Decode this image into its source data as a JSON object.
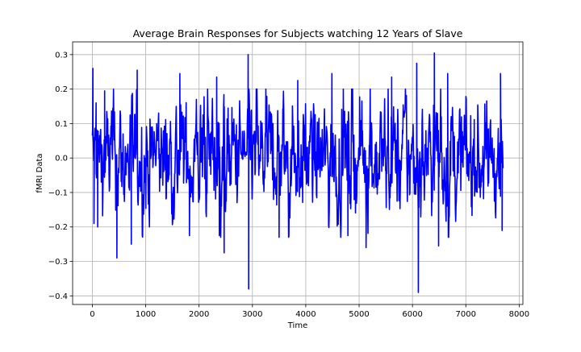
{
  "chart_data": {
    "type": "line",
    "title": "Average Brain Responses for Subjects watching 12 Years of Slave",
    "xlabel": "Time",
    "ylabel": "fMRI Data",
    "xlim": [
      -370,
      8070
    ],
    "ylim": [
      -0.425,
      0.337
    ],
    "xticks": [
      0,
      1000,
      2000,
      3000,
      4000,
      5000,
      6000,
      7000,
      8000
    ],
    "yticks": [
      -0.4,
      -0.3,
      -0.2,
      -0.1,
      0.0,
      0.1,
      0.2,
      0.3
    ],
    "xtick_labels": [
      "0",
      "1000",
      "2000",
      "3000",
      "4000",
      "5000",
      "6000",
      "7000",
      "8000"
    ],
    "ytick_labels": [
      "−0.4",
      "−0.3",
      "−0.2",
      "−0.1",
      "0.0",
      "0.1",
      "0.2",
      "0.3"
    ],
    "grid": true,
    "series": [
      {
        "color": "#0000ff",
        "n_points": 7700,
        "x_start": 0,
        "x_end": 7699,
        "range_min": -0.39,
        "range_max": 0.305,
        "typical_spread": 0.08,
        "peaks": [
          {
            "x": 10,
            "y": 0.26
          },
          {
            "x": 30,
            "y": -0.19
          },
          {
            "x": 70,
            "y": 0.16
          },
          {
            "x": 100,
            "y": -0.2
          },
          {
            "x": 230,
            "y": 0.195
          },
          {
            "x": 460,
            "y": -0.29
          },
          {
            "x": 730,
            "y": -0.25
          },
          {
            "x": 840,
            "y": 0.255
          },
          {
            "x": 1070,
            "y": -0.2
          },
          {
            "x": 1640,
            "y": 0.245
          },
          {
            "x": 1820,
            "y": -0.225
          },
          {
            "x": 2330,
            "y": 0.235
          },
          {
            "x": 2380,
            "y": -0.225
          },
          {
            "x": 2470,
            "y": -0.275
          },
          {
            "x": 2920,
            "y": 0.3
          },
          {
            "x": 2930,
            "y": -0.38
          },
          {
            "x": 2930,
            "y": -0.32
          },
          {
            "x": 3500,
            "y": -0.23
          },
          {
            "x": 3850,
            "y": 0.225
          },
          {
            "x": 4490,
            "y": 0.245
          },
          {
            "x": 4790,
            "y": -0.225
          },
          {
            "x": 5130,
            "y": -0.26
          },
          {
            "x": 5610,
            "y": 0.235
          },
          {
            "x": 6080,
            "y": 0.275
          },
          {
            "x": 6110,
            "y": -0.39
          },
          {
            "x": 6410,
            "y": 0.305
          },
          {
            "x": 6490,
            "y": -0.255
          },
          {
            "x": 6660,
            "y": 0.245
          },
          {
            "x": 7650,
            "y": 0.245
          },
          {
            "x": 7680,
            "y": -0.21
          }
        ]
      }
    ]
  }
}
